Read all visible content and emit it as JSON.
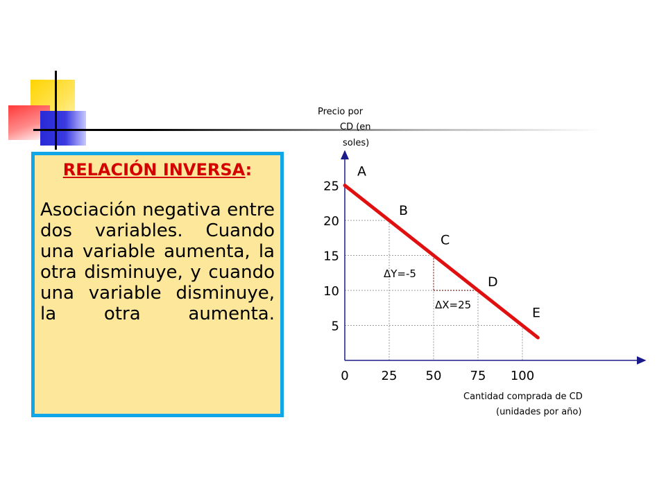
{
  "box": {
    "title": "RELACIÓN INVERSA",
    "title_suffix": ":",
    "body": "Asociación negativa entre dos variables. Cuando una variable aumenta, la otra disminuye, y cuando una variable disminuye, la otra aumenta."
  },
  "colors": {
    "box_background": "#fde79a",
    "box_border": "#11a6e8",
    "title": "#d40000",
    "line": "#e01010",
    "axis": "#1a1a8a"
  },
  "chart_data": {
    "type": "line",
    "ylabel": "Precio por CD (en soles)",
    "xlabel": "Cantidad comprada de CD (unidades por año)",
    "x_ticks": [
      0,
      25,
      50,
      75,
      100
    ],
    "y_ticks": [
      5,
      10,
      15,
      20,
      25
    ],
    "xlim": [
      0,
      165
    ],
    "ylim": [
      0,
      27
    ],
    "grid": "dotted reference lines to points",
    "series": [
      {
        "points": [
          {
            "label": "A",
            "x": 0,
            "y": 25
          },
          {
            "label": "B",
            "x": 25,
            "y": 20
          },
          {
            "label": "C",
            "x": 50,
            "y": 15
          },
          {
            "label": "D",
            "x": 75,
            "y": 10
          },
          {
            "label": "E",
            "x": 100,
            "y": 5
          }
        ]
      }
    ],
    "annotations": {
      "delta_y": "ΔY=-5",
      "delta_x": "ΔX=25"
    }
  }
}
